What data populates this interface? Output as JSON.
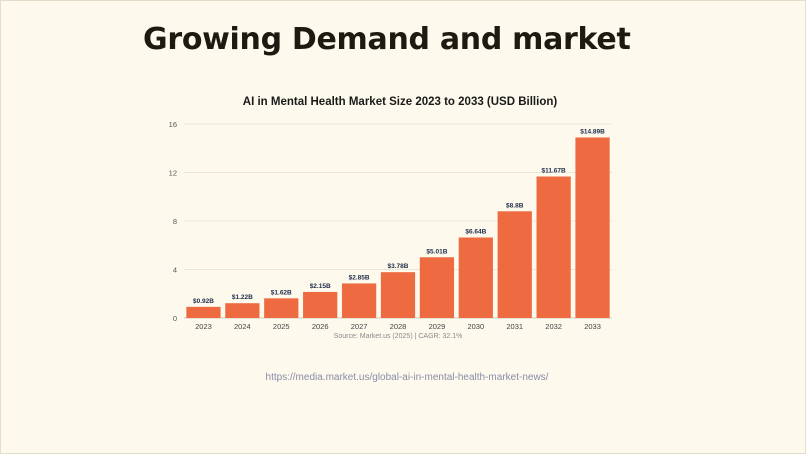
{
  "slide": {
    "title": "Growing Demand and market",
    "link": "https://media.market.us/global-ai-in-mental-health-market-news/"
  },
  "chart_data": {
    "type": "bar",
    "title": "AI in Mental Health Market Size 2023 to 2033 (USD Billion)",
    "categories": [
      "2023",
      "2024",
      "2025",
      "2026",
      "2027",
      "2028",
      "2029",
      "2030",
      "2031",
      "2032",
      "2033"
    ],
    "values": [
      0.92,
      1.22,
      1.62,
      2.15,
      2.85,
      3.78,
      5.01,
      6.64,
      8.8,
      11.67,
      14.89
    ],
    "data_labels": [
      "$0.92B",
      "$1.22B",
      "$1.62B",
      "$2.15B",
      "$2.85B",
      "$3.78B",
      "$5.01B",
      "$6.64B",
      "$8.8B",
      "$11.67B",
      "$14.89B"
    ],
    "yticks": [
      "0",
      "4",
      "8",
      "12",
      "16"
    ],
    "ylim": [
      0,
      16
    ],
    "grid": true,
    "bar_color": "#ee6a40",
    "label_color": "#1f2d4a",
    "source_note": "Source: Market.us (2025) | CAGR: 32.1%"
  }
}
